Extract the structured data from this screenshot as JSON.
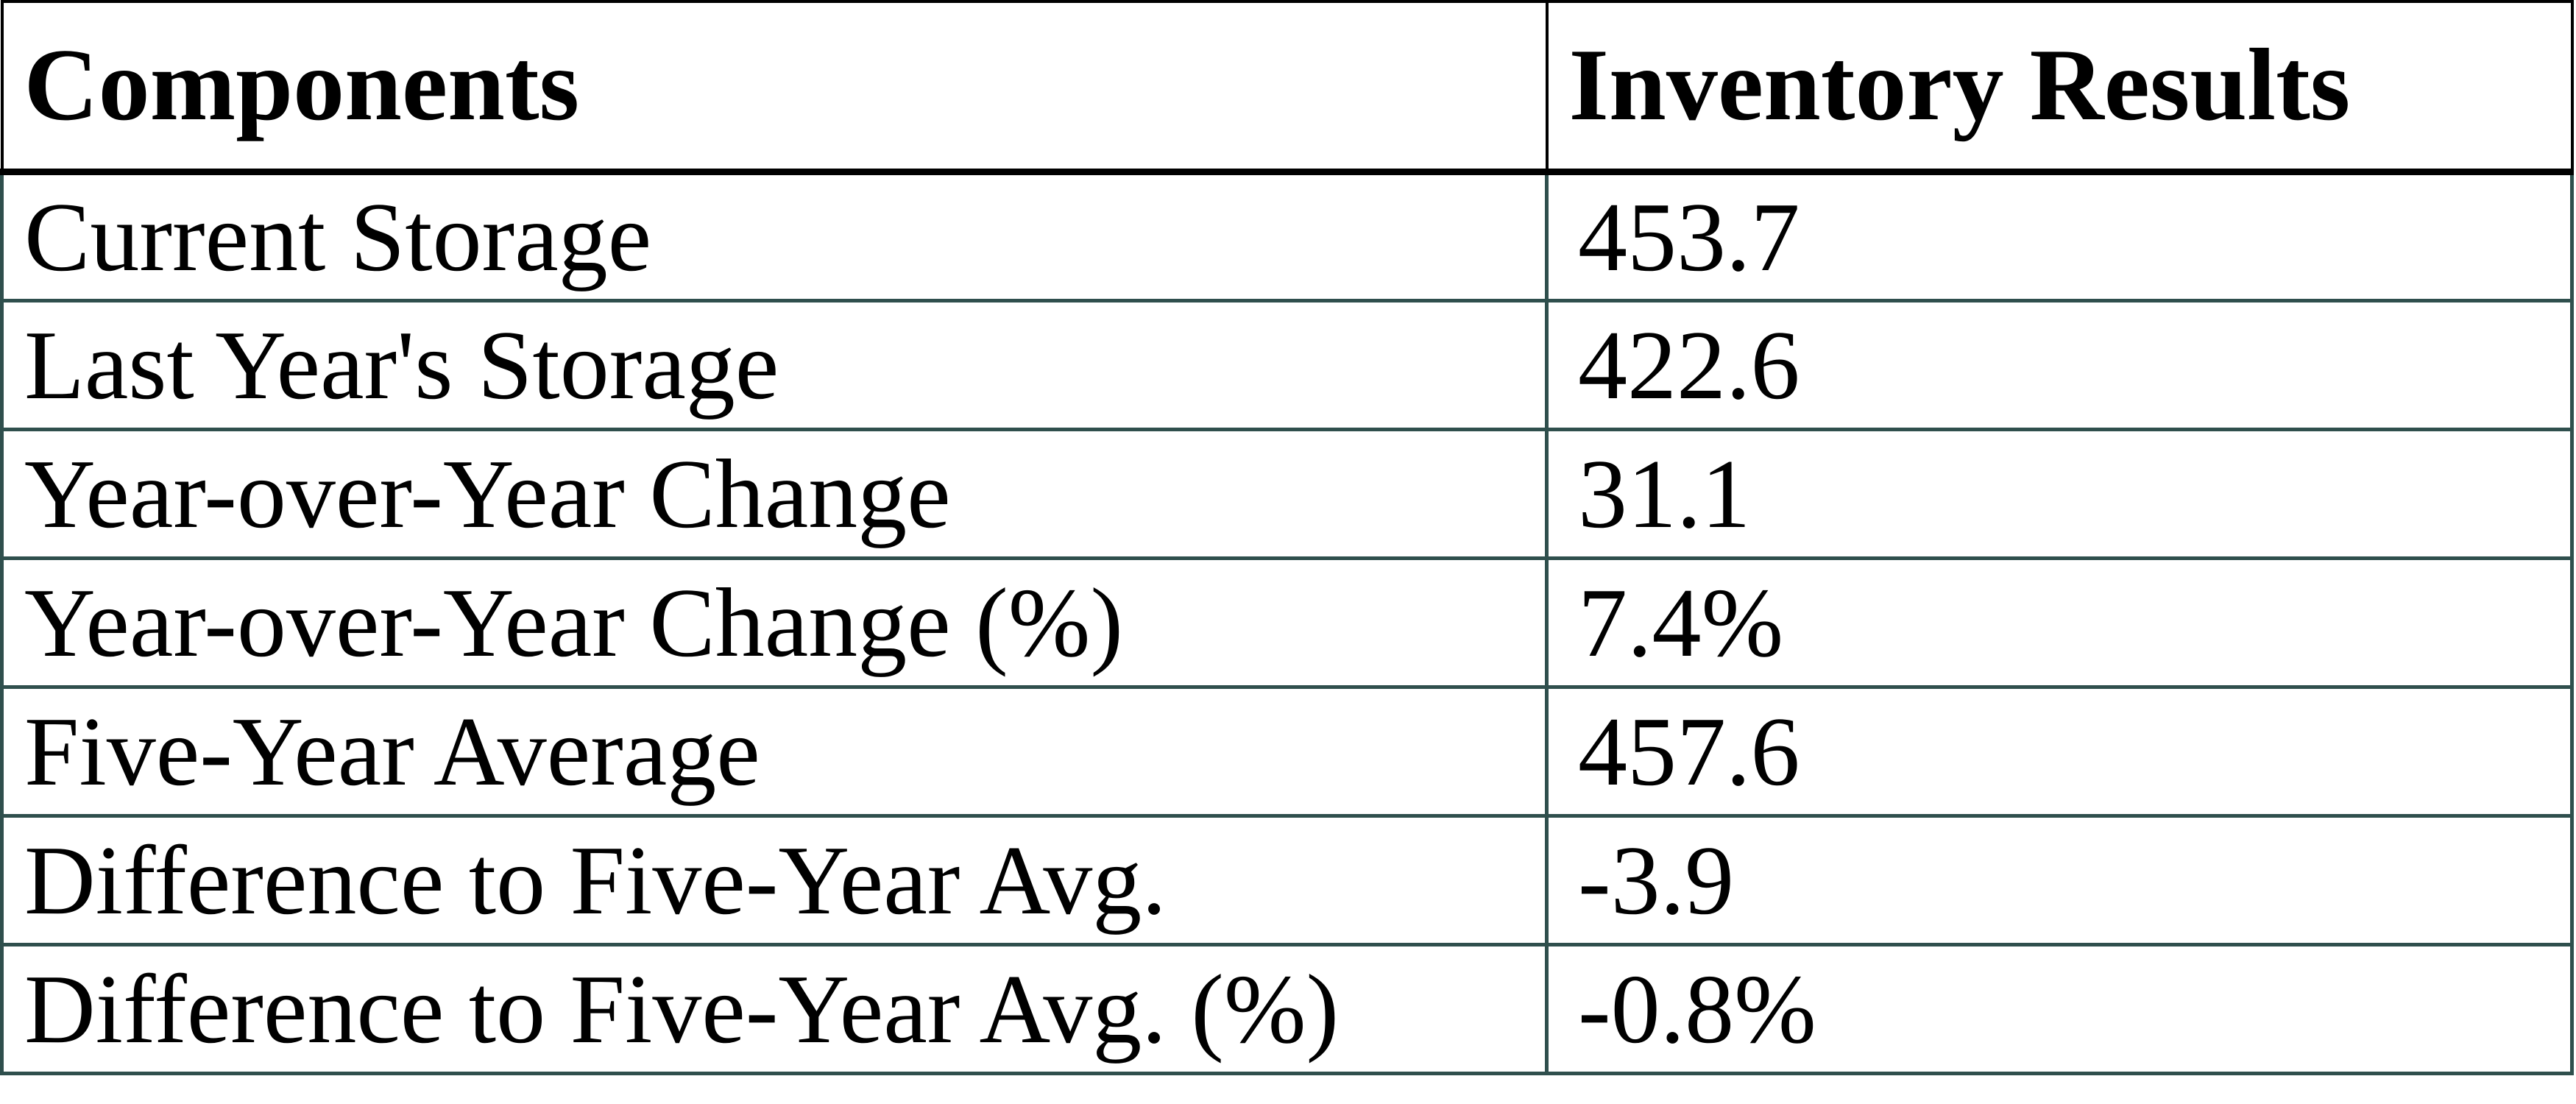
{
  "table": {
    "header": {
      "components": "Components",
      "results": "Inventory Results"
    },
    "rows": [
      {
        "label": "Current Storage",
        "value": "453.7"
      },
      {
        "label": "Last Year's Storage",
        "value": "422.6"
      },
      {
        "label": "Year-over-Year Change",
        "value": "31.1"
      },
      {
        "label": "Year-over-Year Change (%)",
        "value": "7.4%"
      },
      {
        "label": "Five-Year Average",
        "value": "457.6"
      },
      {
        "label": "Difference to Five-Year Avg.",
        "value": "-3.9"
      },
      {
        "label": "Difference to Five-Year Avg. (%)",
        "value": "-0.8%"
      }
    ],
    "colors": {
      "header_border": "#000000",
      "body_border": "#2f4f4d",
      "text": "#000000",
      "background": "#ffffff"
    }
  },
  "chart_data": {
    "type": "table",
    "title": "",
    "columns": [
      "Components",
      "Inventory Results"
    ],
    "rows": [
      [
        "Current Storage",
        "453.7"
      ],
      [
        "Last Year's Storage",
        "422.6"
      ],
      [
        "Year-over-Year Change",
        "31.1"
      ],
      [
        "Year-over-Year Change (%)",
        "7.4%"
      ],
      [
        "Five-Year Average",
        "457.6"
      ],
      [
        "Difference to Five-Year Avg.",
        "-3.9"
      ],
      [
        "Difference to Five-Year Avg. (%)",
        "-0.8%"
      ]
    ],
    "layout_hints": {
      "header_row_bold": true,
      "grid": true,
      "header_border_color": "#000000",
      "body_border_color": "#2f4f4d"
    }
  }
}
